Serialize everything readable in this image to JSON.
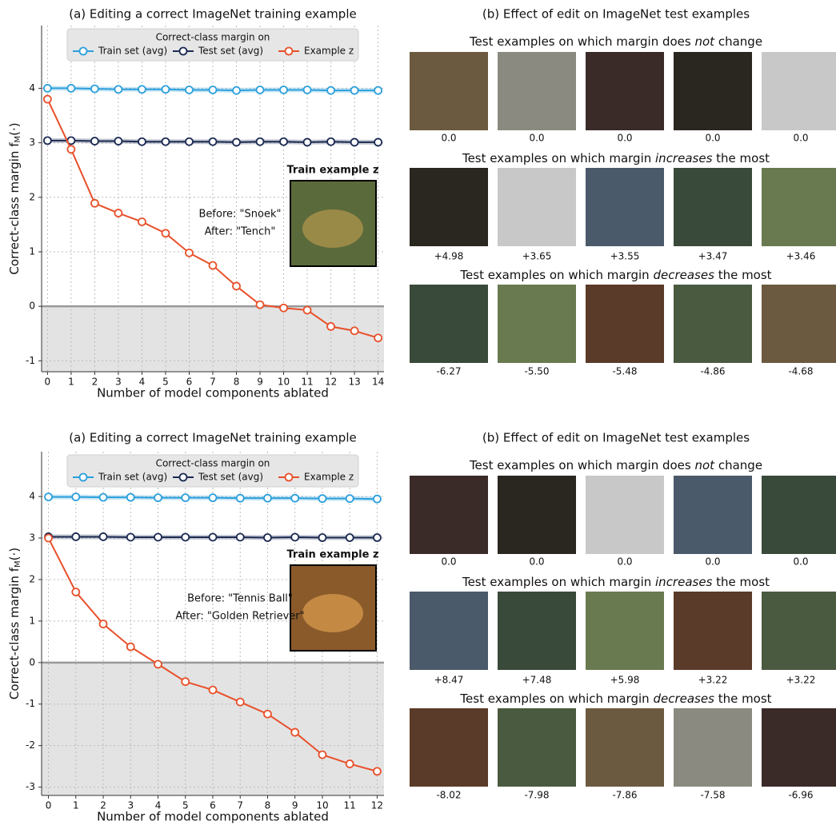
{
  "chart_data": [
    {
      "type": "line",
      "title": "(a) Editing a correct ImageNet training example",
      "xlabel": "Number of model components ablated",
      "ylabel": "Correct-class margin f",
      "ylabel_sub": "M",
      "ylabel_end": "(·)",
      "legend_title": "Correct-class margin on",
      "legend": "upper center",
      "grid": true,
      "x": [
        0,
        1,
        2,
        3,
        4,
        5,
        6,
        7,
        8,
        9,
        10,
        11,
        12,
        13,
        14
      ],
      "series": [
        {
          "name": "Train set (avg)",
          "color": "#2b9fdc",
          "values": [
            4.0,
            4.0,
            3.99,
            3.98,
            3.98,
            3.98,
            3.97,
            3.97,
            3.96,
            3.97,
            3.97,
            3.97,
            3.96,
            3.96,
            3.96
          ]
        },
        {
          "name": "Test set (avg)",
          "color": "#1b2a52",
          "values": [
            3.04,
            3.04,
            3.03,
            3.03,
            3.02,
            3.02,
            3.02,
            3.02,
            3.01,
            3.02,
            3.02,
            3.01,
            3.02,
            3.01,
            3.01
          ]
        },
        {
          "name": "Example z",
          "color": "#e8502a",
          "values": [
            3.8,
            2.88,
            1.89,
            1.71,
            1.55,
            1.34,
            0.98,
            0.75,
            0.37,
            0.03,
            -0.03,
            -0.07,
            -0.37,
            -0.45,
            -0.58
          ]
        }
      ],
      "xlim": [
        -0.25,
        14.25
      ],
      "xticks": [
        0,
        1,
        2,
        3,
        4,
        5,
        6,
        7,
        8,
        9,
        10,
        11,
        12,
        13,
        14
      ],
      "ylim": [
        -1.2,
        5.15
      ],
      "yticks": [
        -1,
        0,
        1,
        2,
        3,
        4
      ],
      "annotation": {
        "title": "Train example z",
        "before": "Before: \"Snoek\"",
        "after": "After: \"Tench\"",
        "before_color": "#2ca02c",
        "after_color": "#d62728"
      }
    },
    {
      "type": "line",
      "title": "(a) Editing a correct ImageNet training example",
      "xlabel": "Number of model components ablated",
      "ylabel": "Correct-class margin f",
      "ylabel_sub": "M",
      "ylabel_end": "(·)",
      "legend_title": "Correct-class margin on",
      "legend": "upper center",
      "grid": true,
      "x": [
        0,
        1,
        2,
        3,
        4,
        5,
        6,
        7,
        8,
        9,
        10,
        11,
        12
      ],
      "series": [
        {
          "name": "Train set (avg)",
          "color": "#2b9fdc",
          "values": [
            3.99,
            3.99,
            3.98,
            3.98,
            3.97,
            3.97,
            3.97,
            3.96,
            3.96,
            3.96,
            3.95,
            3.95,
            3.94
          ]
        },
        {
          "name": "Test set (avg)",
          "color": "#1b2a52",
          "values": [
            3.03,
            3.03,
            3.03,
            3.02,
            3.02,
            3.02,
            3.02,
            3.02,
            3.01,
            3.02,
            3.01,
            3.01,
            3.01
          ]
        },
        {
          "name": "Example z",
          "color": "#e8502a",
          "values": [
            3.0,
            1.7,
            0.93,
            0.38,
            -0.04,
            -0.46,
            -0.66,
            -0.95,
            -1.24,
            -1.68,
            -2.22,
            -2.44,
            -2.62
          ]
        }
      ],
      "xlim": [
        -0.25,
        12.25
      ],
      "xticks": [
        0,
        1,
        2,
        3,
        4,
        5,
        6,
        7,
        8,
        9,
        10,
        11,
        12
      ],
      "ylim": [
        -3.2,
        5.08
      ],
      "yticks": [
        -3,
        -2,
        -1,
        0,
        1,
        2,
        3,
        4
      ],
      "annotation": {
        "title": "Train example z",
        "before": "Before: \"Tennis Ball\"",
        "after": "After: \"Golden Retriever\"",
        "before_color": "#2ca02c",
        "after_color": "#d62728"
      }
    }
  ],
  "panels": [
    {
      "title": "(b) Effect of edit on ImageNet test examples",
      "rows": [
        {
          "heading": [
            "Test examples on which margin does ",
            "not",
            " change"
          ],
          "color": "#111111",
          "values": [
            0,
            0,
            0,
            0,
            0
          ],
          "value_labels": [
            "0.0",
            "0.0",
            "0.0",
            "0.0",
            "0.0"
          ]
        },
        {
          "heading": [
            "Test examples on which margin ",
            "increases",
            " the most"
          ],
          "color": "#2ca02c",
          "values": [
            4.98,
            3.65,
            3.55,
            3.47,
            3.46
          ],
          "value_labels": [
            "+4.98",
            "+3.65",
            "+3.55",
            "+3.47",
            "+3.46"
          ]
        },
        {
          "heading": [
            "Test examples on which margin ",
            "decreases",
            " the most"
          ],
          "color": "#c00000",
          "values": [
            -6.27,
            -5.5,
            -5.48,
            -4.86,
            -4.68
          ],
          "value_labels": [
            "-6.27",
            "-5.50",
            "-5.48",
            "-4.86",
            "-4.68"
          ]
        }
      ]
    },
    {
      "title": "(b) Effect of edit on ImageNet test examples",
      "rows": [
        {
          "heading": [
            "Test examples on which margin does ",
            "not",
            " change"
          ],
          "color": "#111111",
          "values": [
            0,
            0,
            0,
            0,
            0
          ],
          "value_labels": [
            "0.0",
            "0.0",
            "0.0",
            "0.0",
            "0.0"
          ]
        },
        {
          "heading": [
            "Test examples on which margin ",
            "increases",
            " the most"
          ],
          "color": "#2ca02c",
          "values": [
            8.47,
            7.48,
            5.98,
            3.22,
            3.22
          ],
          "value_labels": [
            "+8.47",
            "+7.48",
            "+5.98",
            "+3.22",
            "+3.22"
          ]
        },
        {
          "heading": [
            "Test examples on which margin ",
            "decreases",
            " the most"
          ],
          "color": "#c00000",
          "values": [
            -8.02,
            -7.98,
            -7.86,
            -7.58,
            -6.96
          ]
        }
      ]
    }
  ]
}
